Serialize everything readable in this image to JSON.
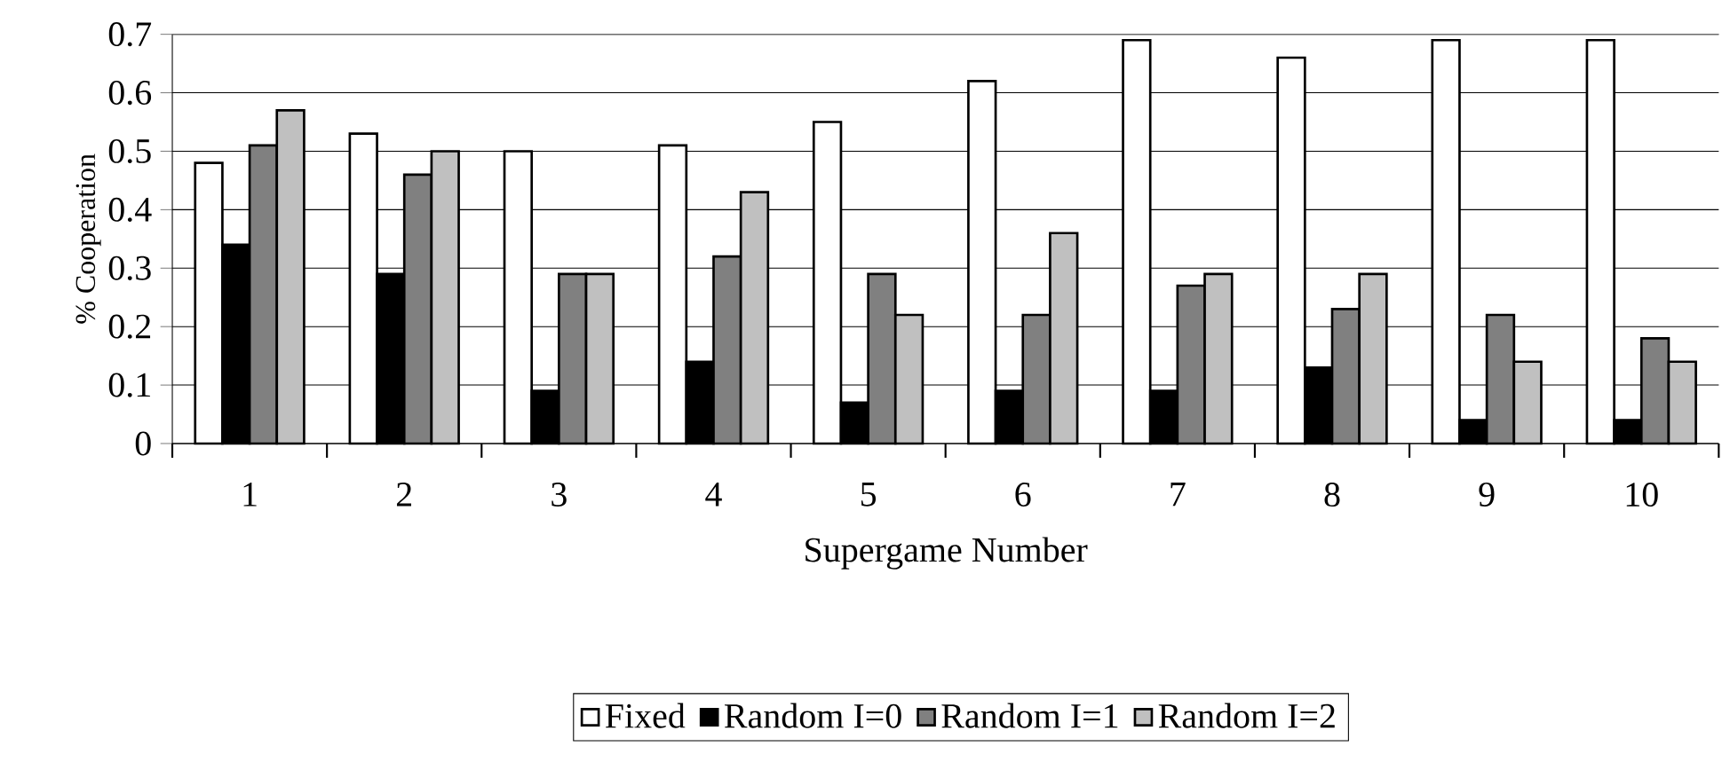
{
  "chart_data": {
    "type": "bar",
    "xlabel": "Supergame Number",
    "ylabel": "% Cooperation",
    "categories": [
      "1",
      "2",
      "3",
      "4",
      "5",
      "6",
      "7",
      "8",
      "9",
      "10"
    ],
    "series": [
      {
        "name": "Fixed",
        "color": "#ffffff",
        "values": [
          0.48,
          0.53,
          0.5,
          0.51,
          0.55,
          0.62,
          0.69,
          0.66,
          0.69,
          0.69
        ]
      },
      {
        "name": "Random I=0",
        "color": "#000000",
        "values": [
          0.34,
          0.29,
          0.09,
          0.14,
          0.07,
          0.09,
          0.09,
          0.13,
          0.04,
          0.04
        ]
      },
      {
        "name": "Random I=1",
        "color": "#808080",
        "values": [
          0.51,
          0.46,
          0.29,
          0.32,
          0.29,
          0.22,
          0.27,
          0.23,
          0.22,
          0.18
        ]
      },
      {
        "name": "Random I=2",
        "color": "#c0c0c0",
        "values": [
          0.57,
          0.5,
          0.29,
          0.43,
          0.22,
          0.36,
          0.29,
          0.29,
          0.14,
          0.14
        ]
      }
    ],
    "ylim": [
      0,
      0.7
    ],
    "yticks": [
      0,
      0.1,
      0.2,
      0.3,
      0.4,
      0.5,
      0.6,
      0.7
    ],
    "grid": "y",
    "legend": "bottom"
  }
}
